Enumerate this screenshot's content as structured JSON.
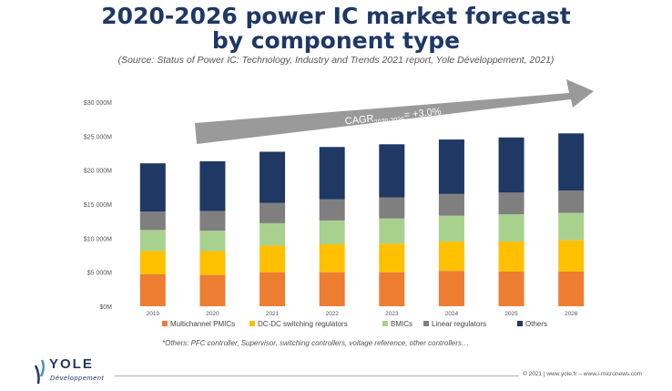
{
  "chart_data": {
    "type": "bar",
    "stacked": true,
    "title_line1": "2020-2026 power IC market forecast",
    "title_line2": "by component type",
    "subtitle": "(Source: Status of Power IC: Technology, Industry and Trends 2021 report, Yole Développement, 2021)",
    "categories": [
      "2019",
      "2020",
      "2021",
      "2022",
      "2023",
      "2024",
      "2025",
      "2026"
    ],
    "y_ticks": [
      "$0M",
      "$5 000M",
      "$10 000M",
      "$15 000M",
      "$20 000M",
      "$25 000M",
      "$30 000M"
    ],
    "ylim": [
      0,
      30000
    ],
    "series": [
      {
        "name": "Multichannel PMICs",
        "color": "#ed7d31",
        "values": [
          4700,
          4600,
          5000,
          5000,
          5000,
          5200,
          5100,
          5100
        ]
      },
      {
        "name": "DC-DC switching regulators",
        "color": "#ffc000",
        "values": [
          3400,
          3500,
          3900,
          4100,
          4200,
          4300,
          4400,
          4600
        ]
      },
      {
        "name": "BMICs",
        "color": "#a9d18e",
        "values": [
          3100,
          3000,
          3300,
          3500,
          3700,
          3800,
          4000,
          4000
        ]
      },
      {
        "name": "Linear regulators",
        "color": "#7f7f7f",
        "values": [
          2700,
          2900,
          3000,
          3100,
          3100,
          3200,
          3200,
          3300
        ]
      },
      {
        "name": "Others",
        "color": "#1f3864",
        "values": [
          7100,
          7300,
          7500,
          7700,
          7800,
          8000,
          8100,
          8400
        ]
      }
    ],
    "annotation": {
      "prefix": "CAGR",
      "subscript": "2020-2026",
      "suffix": "= +3.0%"
    },
    "footnote": "*Others: PFC controller, Supervisor, switching controllers, voltage reference, other controllers…",
    "legend_position": "bottom"
  },
  "logo": {
    "name": "YOLE",
    "sub": "Développement"
  },
  "footer": {
    "copyright": "© 2021 | www.yole.fr – www.i-micronews.com"
  }
}
